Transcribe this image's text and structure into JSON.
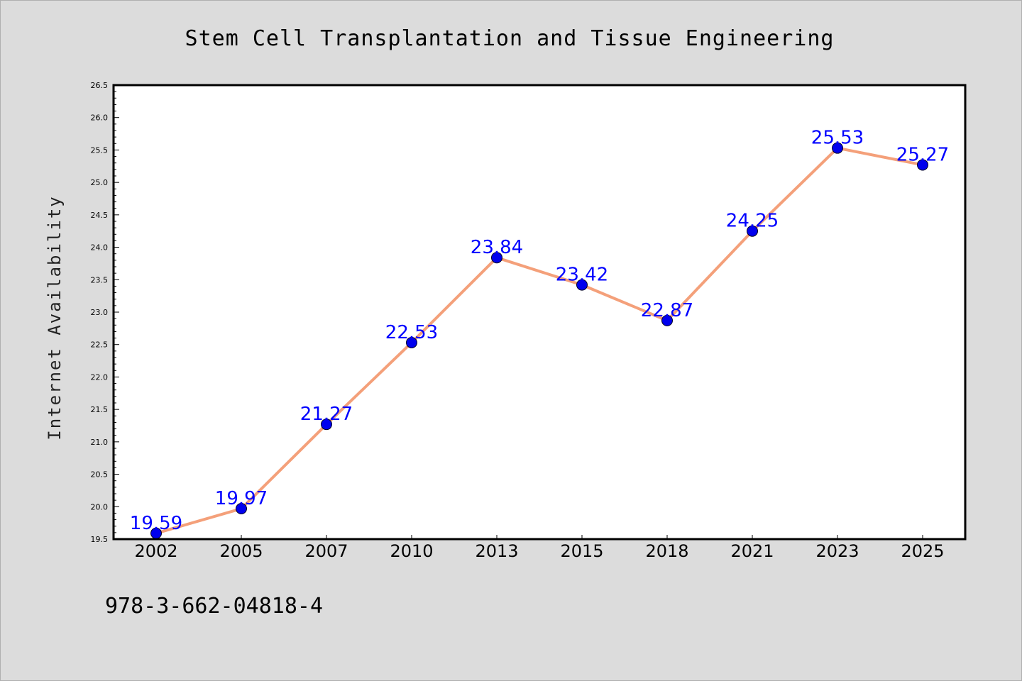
{
  "chart_data": {
    "type": "line",
    "title": "Stem Cell Transplantation and Tissue Engineering",
    "xlabel": "",
    "ylabel": "Internet Availability",
    "categories": [
      "2002",
      "2005",
      "2007",
      "2010",
      "2013",
      "2015",
      "2018",
      "2021",
      "2023",
      "2025"
    ],
    "series": [
      {
        "values": [
          19.59,
          19.97,
          21.27,
          22.53,
          23.84,
          23.42,
          22.87,
          24.25,
          25.53,
          25.27
        ]
      }
    ],
    "data_labels": [
      "19.59",
      "19.97",
      "21.27",
      "22.53",
      "23.84",
      "23.42",
      "22.87",
      "24.25",
      "25.53",
      "25.27"
    ],
    "ylim": [
      19.5,
      26.5
    ],
    "y_ticks": [
      "19.5",
      "20.0",
      "20.5",
      "21.0",
      "21.5",
      "22.0",
      "22.5",
      "23.0",
      "23.5",
      "24.0",
      "24.5",
      "25.0",
      "25.5",
      "26.0",
      "26.5"
    ],
    "grid": false,
    "legend": "none",
    "colors": {
      "line": "#f4a07a",
      "marker": "#0000ee",
      "label": "#0000ff",
      "background": "#dcdcdc",
      "plot_background": "#ffffff"
    }
  },
  "footer": {
    "isbn": "978-3-662-04818-4"
  }
}
